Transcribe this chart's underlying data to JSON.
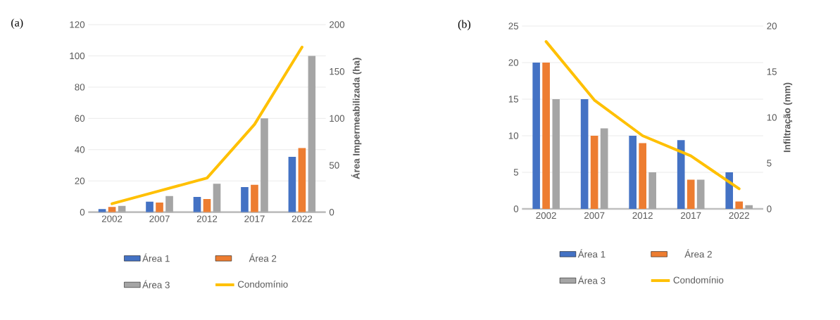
{
  "chart_data": [
    {
      "type": "bar",
      "title": "(a)",
      "categories": [
        "2002",
        "2007",
        "2012",
        "2017",
        "2022"
      ],
      "ylim": [
        0,
        120
      ],
      "yticks": [
        0,
        20,
        40,
        60,
        80,
        100,
        120
      ],
      "y2lim": [
        0,
        200
      ],
      "y2ticks": [
        0,
        50,
        100,
        150,
        200
      ],
      "y2label": "Área Impermeabilizada (ha)",
      "grid": "y",
      "legend": "bottom",
      "series": [
        {
          "name": "Área 1",
          "color": "#4472c4",
          "values": [
            2,
            6.7,
            9.7,
            16,
            35.4
          ]
        },
        {
          "name": "Área 2",
          "color": "#ed7d31",
          "values": [
            3.3,
            6.1,
            8.4,
            17.5,
            41
          ]
        },
        {
          "name": "Área 3",
          "color": "#a5a5a5",
          "values": [
            4,
            10.3,
            18.2,
            60,
            100
          ]
        },
        {
          "name": "Condomínio",
          "type": "line",
          "axis": "y2",
          "color": "#ffc000",
          "values": [
            9,
            22.7,
            36.4,
            93.6,
            176
          ]
        }
      ]
    },
    {
      "type": "bar",
      "title": "(b)",
      "categories": [
        "2002",
        "2007",
        "2012",
        "2017",
        "2022"
      ],
      "ylim": [
        0,
        25
      ],
      "yticks": [
        0,
        5,
        10,
        15,
        20,
        25
      ],
      "y2lim": [
        0,
        20
      ],
      "y2ticks": [
        0,
        5,
        10,
        15,
        20
      ],
      "y2label": "Infiltração (mm)",
      "grid": "y",
      "legend": "bottom",
      "series": [
        {
          "name": "Área 1",
          "color": "#4472c4",
          "values": [
            20,
            15,
            10,
            9.4,
            5
          ]
        },
        {
          "name": "Área 2",
          "color": "#ed7d31",
          "values": [
            20,
            10,
            9,
            4,
            1
          ]
        },
        {
          "name": "Área 3",
          "color": "#a5a5a5",
          "values": [
            15,
            11,
            5,
            4,
            0.5
          ]
        },
        {
          "name": "Condomínio",
          "type": "line",
          "axis": "y2",
          "color": "#ffc000",
          "values": [
            18.3,
            11.9,
            8,
            5.8,
            2.2
          ]
        }
      ]
    }
  ]
}
